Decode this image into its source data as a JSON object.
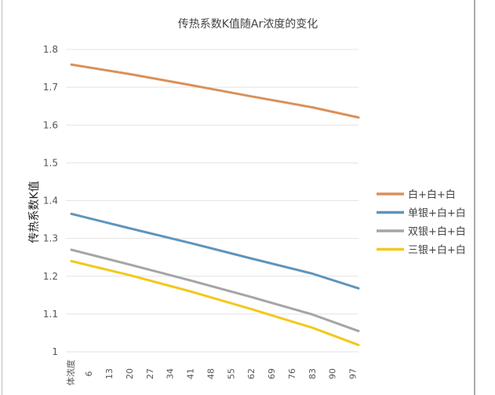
{
  "chart_data": {
    "type": "line",
    "title": "传热系数K值随Ar浓度的变化",
    "xlabel": "体浓度",
    "ylabel": "传热系数K值",
    "x_tick_labels": [
      "体浓度",
      "6",
      "13",
      "20",
      "27",
      "34",
      "41",
      "48",
      "55",
      "62",
      "69",
      "76",
      "83",
      "90",
      "97"
    ],
    "x_tick_values": [
      0,
      6,
      13,
      20,
      27,
      34,
      41,
      48,
      55,
      62,
      69,
      76,
      83,
      90,
      97
    ],
    "xlim": [
      0,
      99
    ],
    "ylim": [
      1,
      1.8
    ],
    "y_ticks": [
      "1",
      "1.1",
      "1.2",
      "1.3",
      "1.4",
      "1.5",
      "1.6",
      "1.7",
      "1.8"
    ],
    "grid": true,
    "legend_position": "right",
    "x": [
      0,
      20,
      41,
      62,
      83,
      99
    ],
    "series": [
      {
        "name": "白+白+白",
        "color": "#d9915a",
        "values": [
          1.76,
          1.735,
          1.706,
          1.676,
          1.647,
          1.62
        ]
      },
      {
        "name": "单银+白+白",
        "color": "#5e95bd",
        "values": [
          1.365,
          1.327,
          1.288,
          1.247,
          1.207,
          1.168
        ]
      },
      {
        "name": "双银+白+白",
        "color": "#a5a5a5",
        "values": [
          1.27,
          1.231,
          1.189,
          1.145,
          1.099,
          1.055
        ]
      },
      {
        "name": "三银+白+白",
        "color": "#f2c81c",
        "values": [
          1.24,
          1.203,
          1.16,
          1.113,
          1.064,
          1.018
        ]
      }
    ]
  }
}
